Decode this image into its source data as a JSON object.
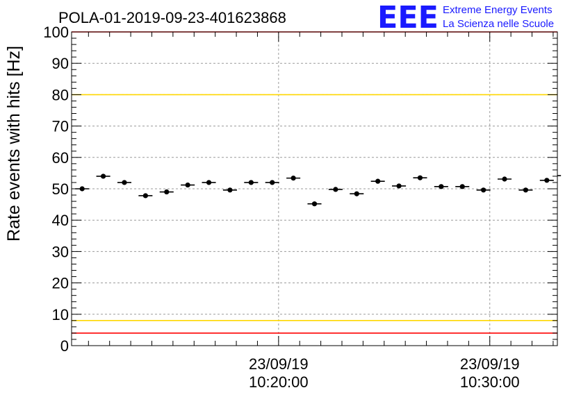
{
  "header": {
    "title": "POLA-01-2019-09-23-401623868",
    "logo_text": "EEE",
    "logo_line1": "Extreme Energy Events",
    "logo_line2": "La Scienza nelle Scuole",
    "logo_color": "#1a1aff"
  },
  "chart_data": {
    "type": "scatter",
    "title": "POLA-01-2019-09-23-401623868",
    "ylabel": "Rate events with hits [Hz]",
    "xlabel": "",
    "ylim": [
      0,
      100
    ],
    "y_ticks": [
      0,
      10,
      20,
      30,
      40,
      50,
      60,
      70,
      80,
      90,
      100
    ],
    "x_range_minutes": [
      10.2,
      33.2
    ],
    "x_axis_unit": "minutes after 23/09/19 10:00:00",
    "x_tick_labels": [
      {
        "x": 20,
        "date": "23/09/19",
        "time": "10:20:00"
      },
      {
        "x": 30,
        "date": "23/09/19",
        "time": "10:30:00"
      }
    ],
    "grid": true,
    "marker_color": "#000000",
    "x_error_minutes": 0.33,
    "x": [
      10.7,
      11.7,
      12.7,
      13.7,
      14.7,
      15.7,
      16.7,
      17.7,
      18.7,
      19.7,
      20.7,
      21.7,
      22.7,
      23.7,
      24.7,
      25.7,
      26.7,
      27.7,
      28.7,
      29.7,
      30.7,
      31.7,
      32.7,
      33.7
    ],
    "values": [
      50.0,
      54.0,
      52.0,
      47.8,
      49.0,
      51.2,
      52.0,
      49.6,
      52.0,
      52.0,
      53.4,
      45.2,
      49.8,
      48.4,
      52.4,
      50.9,
      53.5,
      50.7,
      50.7,
      49.6,
      53.1,
      49.6,
      52.7,
      54.2
    ],
    "reference_lines": [
      {
        "y": 100,
        "color": "#ff0000"
      },
      {
        "y": 80,
        "color": "#ffd700"
      },
      {
        "y": 8,
        "color": "#ffd700"
      },
      {
        "y": 4,
        "color": "#ff0000"
      }
    ]
  }
}
